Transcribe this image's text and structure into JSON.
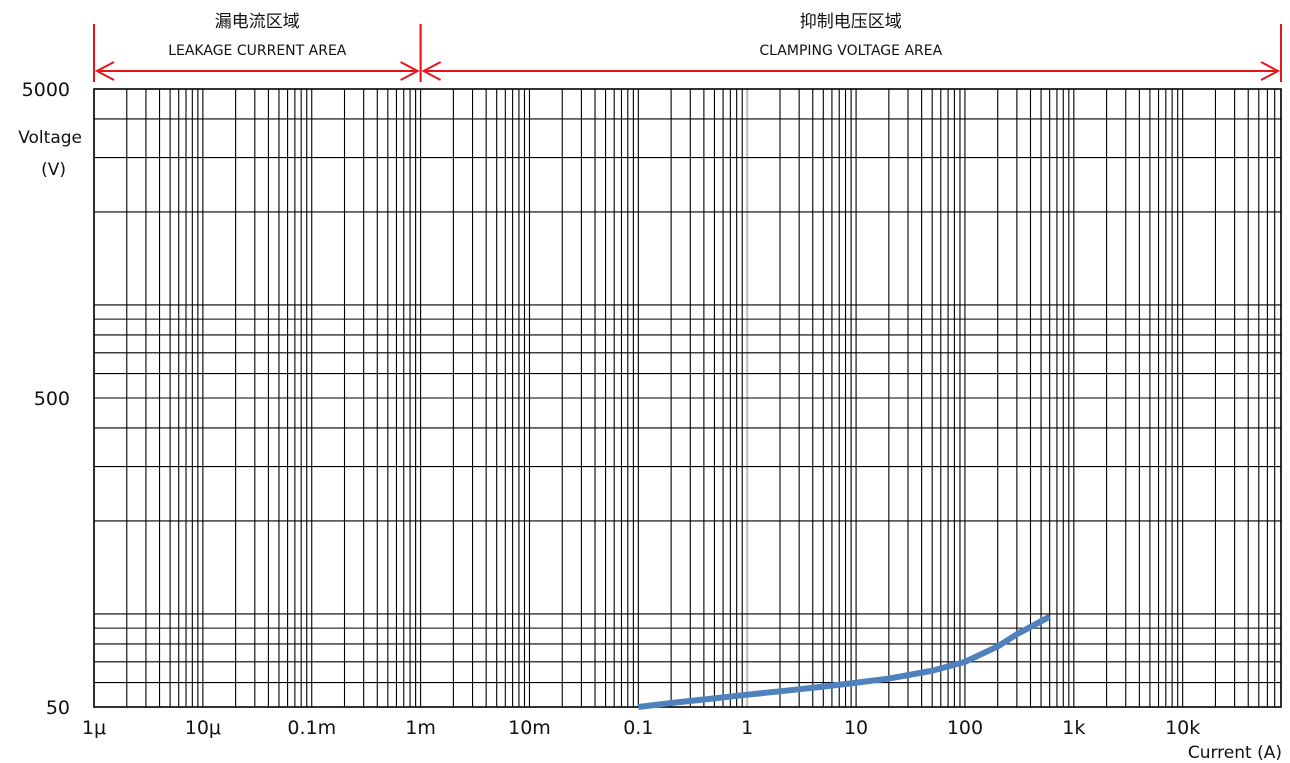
{
  "chart_data": {
    "type": "line",
    "scale": {
      "x": "log",
      "y": "log"
    },
    "xlim": [
      1e-06,
      80000
    ],
    "ylim": [
      50,
      5000
    ],
    "x_ticks": [
      {
        "value": 1e-06,
        "label": "1μ"
      },
      {
        "value": 1e-05,
        "label": "10μ"
      },
      {
        "value": 0.0001,
        "label": "0.1m"
      },
      {
        "value": 0.001,
        "label": "1m"
      },
      {
        "value": 0.01,
        "label": "10m"
      },
      {
        "value": 0.1,
        "label": "0.1"
      },
      {
        "value": 1,
        "label": "1"
      },
      {
        "value": 10,
        "label": "10"
      },
      {
        "value": 100,
        "label": "100"
      },
      {
        "value": 1000,
        "label": "1k"
      },
      {
        "value": 10000,
        "label": "10k"
      }
    ],
    "y_ticks": [
      {
        "value": 5000,
        "label": "5000"
      },
      {
        "value": 500,
        "label": "500"
      },
      {
        "value": 50,
        "label": "50"
      }
    ],
    "xlabel": "Current (A)",
    "ylabel_line1": "Voltage",
    "ylabel_line2": "(V)",
    "grid": true,
    "regions": [
      {
        "label_cn": "漏电流区域",
        "label_en": "LEAKAGE CURRENT AREA",
        "from": 1e-06,
        "to": 0.001,
        "color": "#e8141b"
      },
      {
        "label_cn": "抑制电压区域",
        "label_en": "CLAMPING VOLTAGE AREA",
        "from": 0.001,
        "to": 80000,
        "color": "#e8141b"
      }
    ],
    "series": [
      {
        "color": "#4f81bd",
        "points": [
          [
            0.1,
            50
          ],
          [
            0.2,
            51.5
          ],
          [
            0.5,
            53.3
          ],
          [
            1,
            54.8
          ],
          [
            2,
            56.2
          ],
          [
            5,
            58.2
          ],
          [
            10,
            59.9
          ],
          [
            20,
            61.8
          ],
          [
            50,
            65.5
          ],
          [
            100,
            70
          ],
          [
            200,
            78.5
          ],
          [
            300,
            86
          ],
          [
            600,
            98
          ]
        ]
      }
    ]
  }
}
